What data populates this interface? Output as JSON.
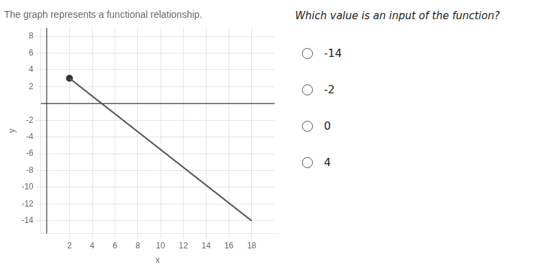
{
  "chart_data": {
    "type": "line",
    "title": "The graph represents a functional relationship.",
    "xlabel": "x",
    "ylabel": "y",
    "series": [
      {
        "type": "line",
        "color": "#555555",
        "marker": "none",
        "x": [
          2,
          18
        ],
        "values": [
          3,
          -14
        ]
      },
      {
        "type": "scatter",
        "color": "#333333",
        "marker": "circle",
        "x": [
          2
        ],
        "values": [
          3
        ]
      }
    ],
    "xlim": [
      -0.5,
      20
    ],
    "ylim": [
      -15.5,
      9
    ],
    "xticks": [
      2,
      4,
      6,
      8,
      10,
      12,
      14,
      16,
      18
    ],
    "yticks": [
      -14,
      -12,
      -10,
      -8,
      -6,
      -4,
      -2,
      2,
      4,
      6,
      8
    ],
    "grid": true,
    "annotations": [
      "Which value is an input of the function?",
      "-14",
      "-2",
      "0",
      "4"
    ]
  }
}
